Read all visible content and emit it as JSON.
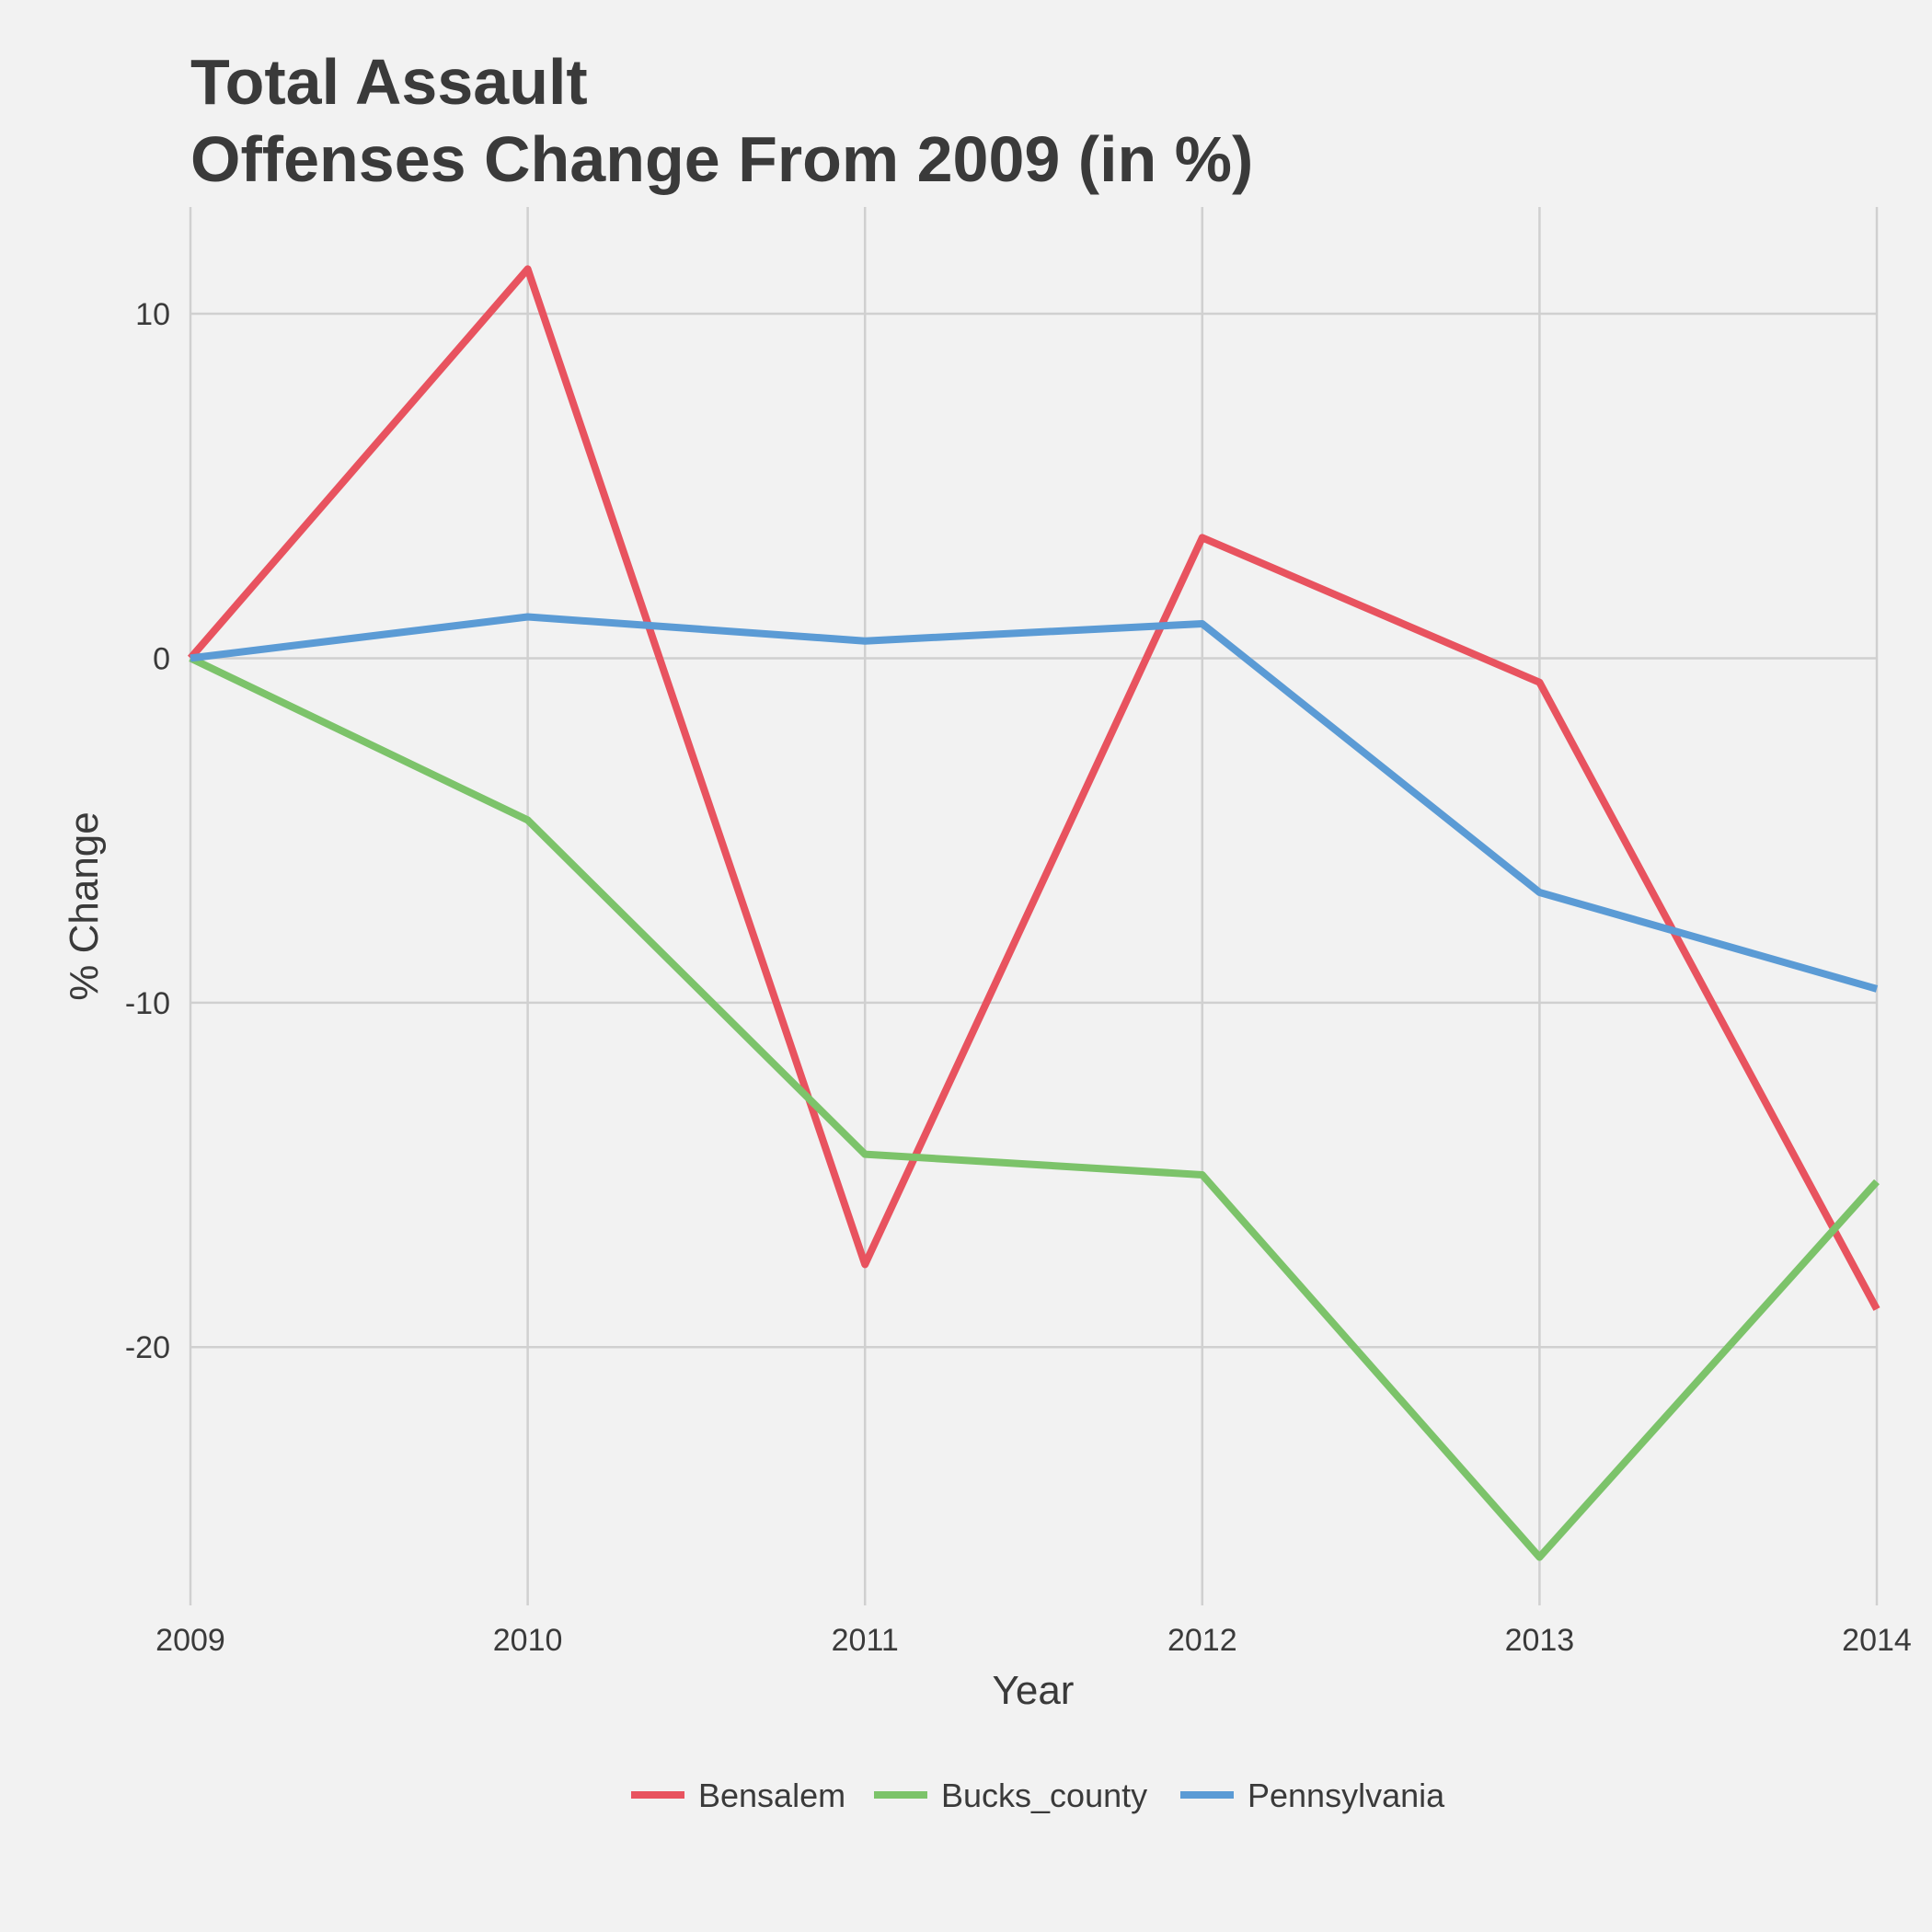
{
  "chart_data": {
    "type": "line",
    "title_lines": [
      "Total Assault",
      "Offenses Change From 2009 (in %)"
    ],
    "xlabel": "Year",
    "ylabel": "% Change",
    "x": [
      2009,
      2010,
      2011,
      2012,
      2013,
      2014
    ],
    "x_tick_labels": [
      "2009",
      "2010",
      "2011",
      "2012",
      "2013",
      "2014"
    ],
    "y_ticks": [
      10,
      0,
      -10,
      -20
    ],
    "y_tick_labels": [
      "10",
      "0",
      "-10",
      "-20"
    ],
    "ylim": [
      -27.5,
      13.1
    ],
    "grid": true,
    "legend_position": "bottom",
    "series": [
      {
        "name": "Bensalem",
        "color": "#e8535f",
        "values": [
          0,
          11.3,
          -17.6,
          3.5,
          -0.7,
          -18.9
        ]
      },
      {
        "name": "Bucks_county",
        "color": "#7cc36a",
        "values": [
          0,
          -4.7,
          -14.4,
          -15.0,
          -26.1,
          -15.2
        ]
      },
      {
        "name": "Pennsylvania",
        "color": "#5b9bd5",
        "values": [
          0,
          1.2,
          0.5,
          1.0,
          -6.8,
          -9.6
        ]
      }
    ]
  }
}
